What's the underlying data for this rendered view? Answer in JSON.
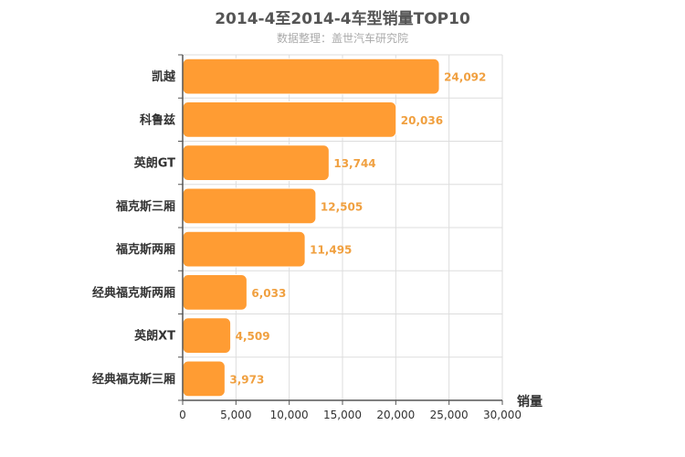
{
  "title": "2014-4至2014-4车型销量TOP10",
  "subtitle": "数据整理：盖世汽车研究院",
  "colors": {
    "bar": "#ff9c33",
    "bar_stroke": "#ffffff",
    "value_label": "#f0a040",
    "grid": "#dddddd",
    "axis": "#555555",
    "title": "#555555",
    "subtitle": "#aaaaaa"
  },
  "chart_data": {
    "type": "bar",
    "orientation": "horizontal",
    "categories": [
      "凯越",
      "科鲁兹",
      "英朗GT",
      "福克斯三厢",
      "福克斯两厢",
      "经典福克斯两厢",
      "英朗XT",
      "经典福克斯三厢"
    ],
    "values": [
      24092,
      20036,
      13744,
      12505,
      11495,
      6033,
      4509,
      3973
    ],
    "value_labels": [
      "24,092",
      "20,036",
      "13,744",
      "12,505",
      "11,495",
      "6,033",
      "4,509",
      "3,973"
    ],
    "xlabel": "销量",
    "ylabel": "",
    "xlim": [
      0,
      30000
    ],
    "x_ticks": [
      0,
      5000,
      10000,
      15000,
      20000,
      25000,
      30000
    ],
    "x_tick_labels": [
      "0",
      "5,000",
      "10,000",
      "15,000",
      "20,000",
      "25,000",
      "30,000"
    ],
    "grid": true,
    "legend": "none"
  }
}
